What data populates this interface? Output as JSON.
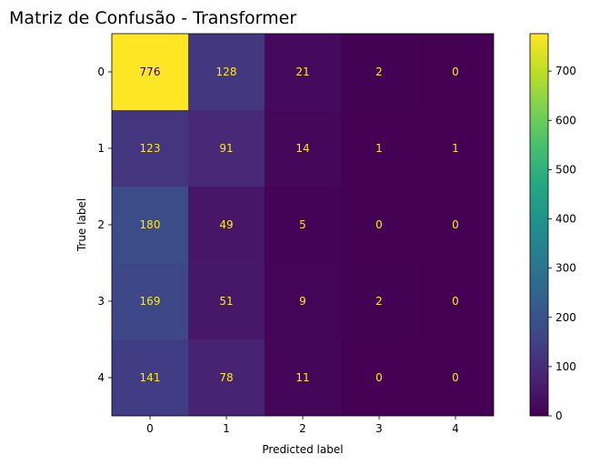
{
  "chart_data": {
    "type": "heatmap",
    "title": "Matriz de Confusão - Transformer",
    "xlabel": "Predicted label",
    "ylabel": "True label",
    "x_categories": [
      "0",
      "1",
      "2",
      "3",
      "4"
    ],
    "y_categories": [
      "0",
      "1",
      "2",
      "3",
      "4"
    ],
    "matrix": [
      [
        776,
        128,
        21,
        2,
        0
      ],
      [
        123,
        91,
        14,
        1,
        1
      ],
      [
        180,
        49,
        5,
        0,
        0
      ],
      [
        169,
        51,
        9,
        2,
        0
      ],
      [
        141,
        78,
        11,
        0,
        0
      ]
    ],
    "colormap": "viridis",
    "value_range": [
      0,
      776
    ],
    "colorbar_ticks": [
      0,
      100,
      200,
      300,
      400,
      500,
      600,
      700
    ],
    "grid": false
  }
}
